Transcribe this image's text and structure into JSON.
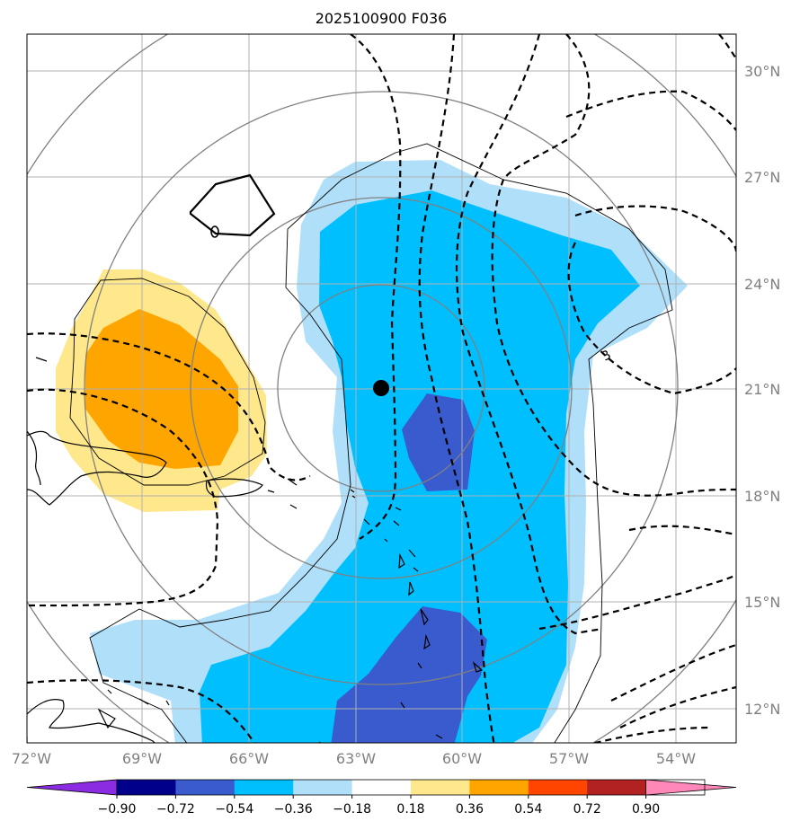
{
  "title": "2025100900 F036",
  "map": {
    "lon_ticks": [
      "72°W",
      "69°W",
      "66°W",
      "63°W",
      "60°W",
      "57°W",
      "54°W"
    ],
    "lat_ticks": [
      "30°N",
      "27°N",
      "24°N",
      "21°N",
      "18°N",
      "15°N",
      "12°N"
    ],
    "contour_label": "3",
    "center_marker": "storm-center-dot"
  },
  "colorbar": {
    "labels": [
      "−0.90",
      "−0.72",
      "−0.54",
      "−0.36",
      "−0.18",
      "0.18",
      "0.36",
      "0.54",
      "0.72",
      "0.90"
    ],
    "colors": [
      "#8b2be2",
      "#00008b",
      "#3a5bcd",
      "#00bfff",
      "#b0dffa",
      "#ffffff",
      "#ffe88c",
      "#ffa500",
      "#ff4500",
      "#b22222",
      "#ff88b8"
    ]
  },
  "colors": {
    "land_outline": "#000000",
    "grid": "#b0b0b0",
    "geopotential": "#808080",
    "dashed_contour": "#000000"
  }
}
